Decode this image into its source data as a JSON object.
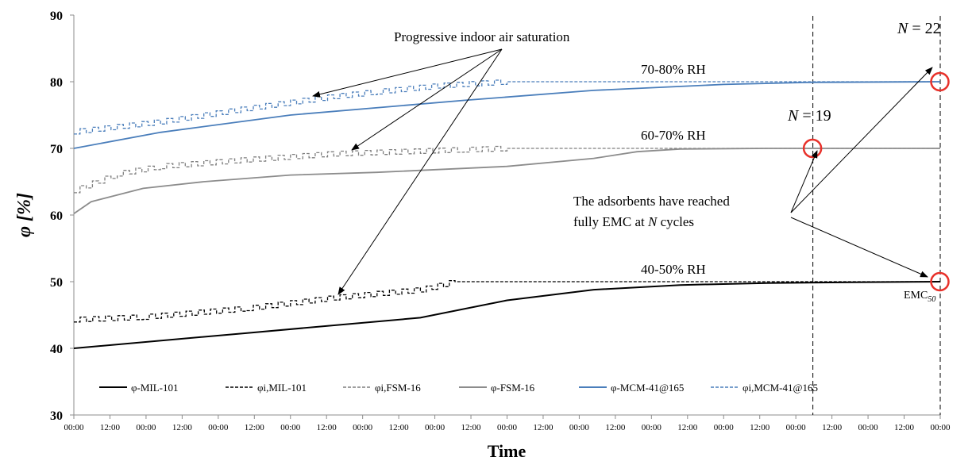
{
  "chart_data": {
    "type": "line",
    "ylabel": "φ [%]",
    "xlabel": "Time",
    "ylim": [
      30,
      90
    ],
    "yticks": [
      "30",
      "40",
      "50",
      "60",
      "70",
      "80",
      "90"
    ],
    "xticks": [
      "00:00",
      "12:00",
      "00:00",
      "12:00",
      "00:00",
      "12:00",
      "00:00",
      "12:00",
      "00:00",
      "12:00",
      "00:00",
      "12:00",
      "00:00",
      "12:00",
      "00:00",
      "12:00",
      "00:00",
      "12:00",
      "00:00",
      "12:00",
      "00:00",
      "12:00",
      "00:00",
      "12:00",
      "00:00"
    ],
    "x_range": [
      0,
      1
    ],
    "grid": false,
    "legend_position": "bottom-left inside",
    "colors": {
      "black": "#000000",
      "gray_dashed": "#7f7f7f",
      "gray_solid": "#8c8c8c",
      "blue": "#4a7ebb",
      "marker": "#e8312a"
    },
    "series": [
      {
        "name": "φ-MIL-101",
        "style": "solid",
        "color": "#000000",
        "x": [
          0,
          0.2,
          0.4,
          0.5,
          0.6,
          0.7,
          0.8,
          0.9,
          1.0
        ],
        "y": [
          40,
          42.3,
          44.6,
          47.2,
          48.8,
          49.5,
          49.8,
          49.9,
          50
        ]
      },
      {
        "name": "φi,MIL-101",
        "style": "dashed",
        "color": "#000000",
        "x": [
          0,
          0.08,
          0.2,
          0.3,
          0.4,
          0.44,
          0.5,
          1.0
        ],
        "y": [
          44.3,
          44.7,
          46,
          47.6,
          48.8,
          50,
          50,
          50
        ]
      },
      {
        "name": "φi,FSM-16",
        "style": "dashed",
        "color": "#7f7f7f",
        "x": [
          0,
          0.05,
          0.1,
          0.2,
          0.3,
          0.45,
          0.5,
          1.0
        ],
        "y": [
          63.7,
          66.2,
          67.3,
          68.3,
          69.2,
          69.8,
          70,
          70
        ]
      },
      {
        "name": "φ-FSM-16",
        "style": "solid",
        "color": "#8c8c8c",
        "x": [
          0,
          0.02,
          0.08,
          0.15,
          0.25,
          0.35,
          0.5,
          0.6,
          0.65,
          0.7,
          0.8,
          1.0
        ],
        "y": [
          60.2,
          62,
          64,
          65,
          66,
          66.4,
          67.3,
          68.5,
          69.5,
          69.9,
          70,
          70
        ]
      },
      {
        "name": "φ-MCM-41@165",
        "style": "solid",
        "color": "#4a7ebb",
        "x": [
          0,
          0.1,
          0.25,
          0.45,
          0.6,
          0.75,
          0.85,
          1.0
        ],
        "y": [
          70,
          72.4,
          75,
          77.2,
          78.7,
          79.6,
          79.9,
          80
        ]
      },
      {
        "name": "φi,MCM-41@165",
        "style": "dashed",
        "color": "#4a7ebb",
        "x": [
          0,
          0.1,
          0.2,
          0.3,
          0.35,
          0.42,
          0.5,
          1.0
        ],
        "y": [
          72.5,
          74,
          76,
          77.8,
          78.5,
          79.4,
          80,
          80
        ]
      }
    ],
    "annotations": {
      "saturation": "Progressive indoor air saturation",
      "rh_high": "70-80% RH",
      "rh_mid": "60-70% RH",
      "rh_low": "40-50% RH",
      "n19_prefix": "N",
      "n19_value": " = 19",
      "n22_prefix": "N",
      "n22_value": " = 22",
      "emc_line1": "The adsorbents have reached",
      "emc_line2_a": "fully EMC at ",
      "emc_line2_n": "N",
      "emc_line2_b": " cycles",
      "emc_label": "EMC",
      "emc_sub": "50"
    },
    "markers": [
      {
        "x": 0.853,
        "y": 70
      },
      {
        "x": 1.0,
        "y": 80
      },
      {
        "x": 1.0,
        "y": 50
      }
    ],
    "vlines": [
      0.853,
      1.0
    ]
  }
}
